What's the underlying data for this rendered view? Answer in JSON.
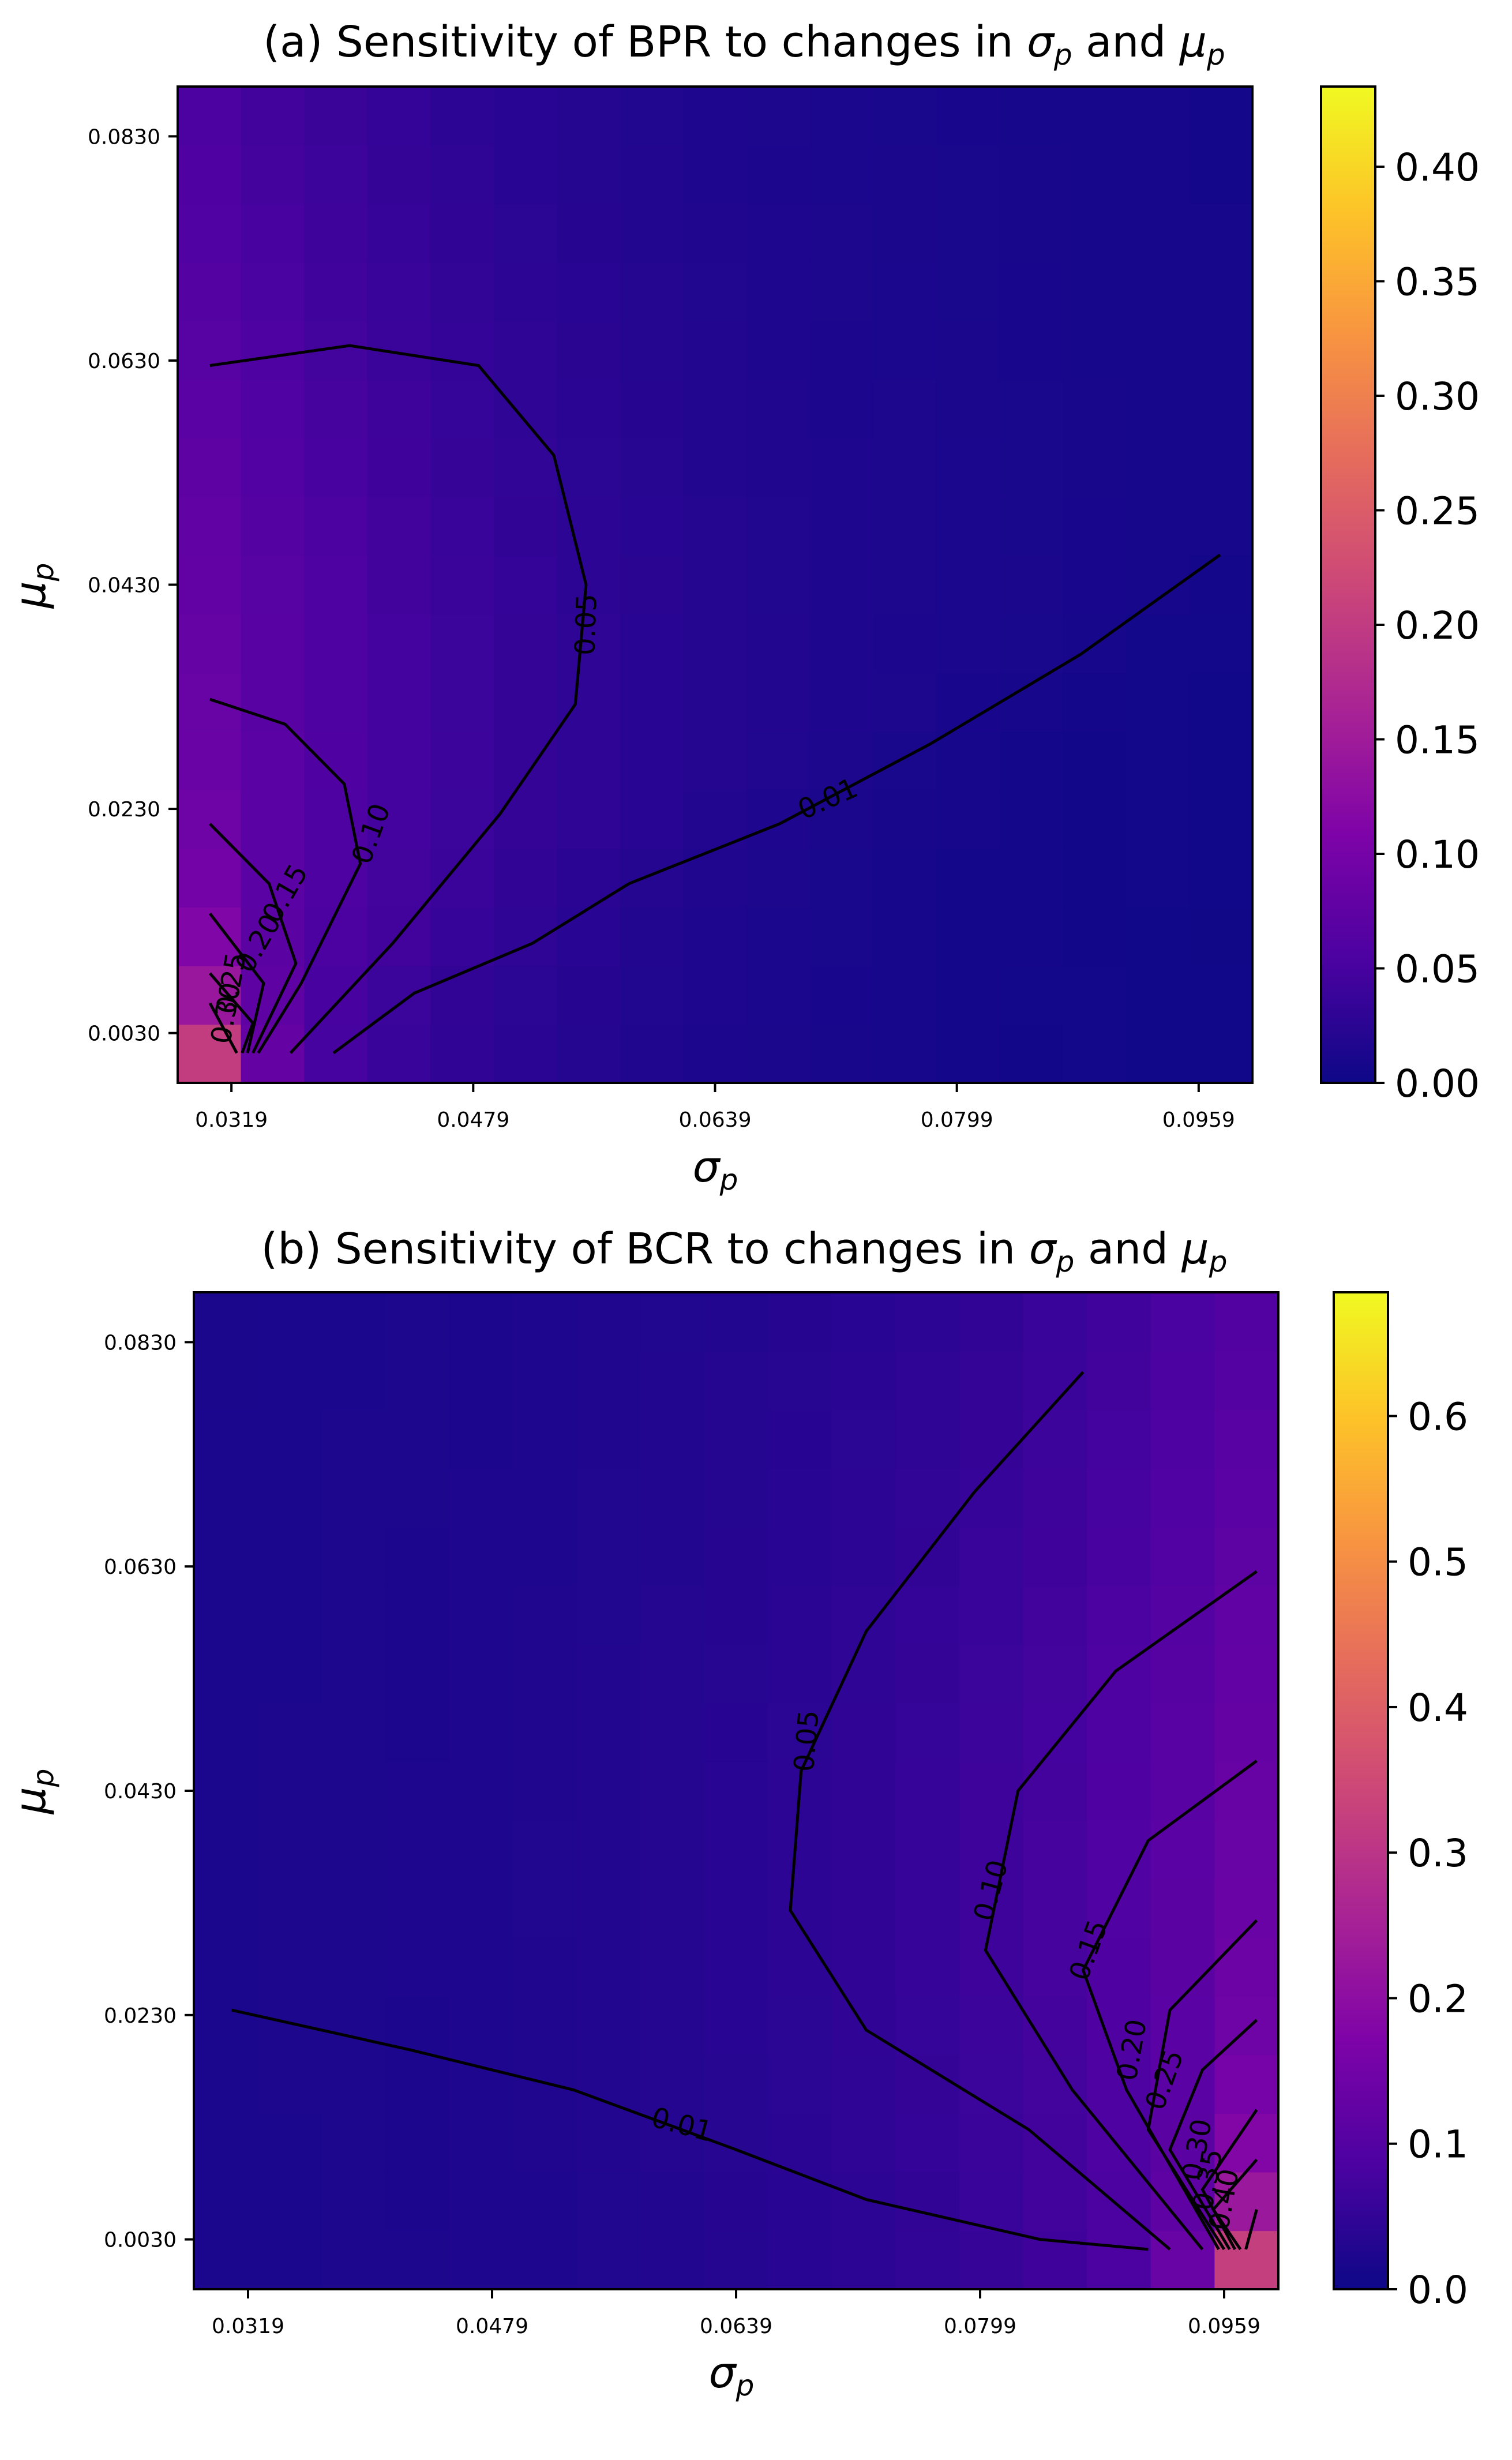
{
  "chart_data": [
    {
      "type": "heatmap",
      "title_prefix": "(a) Sensitivity of BPR to changes in ",
      "title_mid": " and ",
      "sigma_symbol": "σ",
      "mu_symbol": "μ",
      "subscript": "p",
      "xlabel": "σp",
      "ylabel": "μp",
      "x_ticks": [
        "0.0319",
        "0.0479",
        "0.0639",
        "0.0799",
        "0.0959"
      ],
      "y_ticks": [
        "0.0030",
        "0.0230",
        "0.0430",
        "0.0630",
        "0.0830"
      ],
      "x_range": [
        0.0319,
        0.0959
      ],
      "y_range": [
        0.003,
        0.083
      ],
      "grid": {
        "nx": 17,
        "ny": 17
      },
      "colormap": "plasma",
      "vmin": 0.0,
      "vmax": 0.435,
      "colorbar_ticks": [
        "0.00",
        "0.05",
        "0.10",
        "0.15",
        "0.20",
        "0.25",
        "0.30",
        "0.35",
        "0.40"
      ],
      "colorbar_values": [
        0.0,
        0.05,
        0.1,
        0.15,
        0.2,
        0.25,
        0.3,
        0.35,
        0.4
      ],
      "peak_corner": "bottom-left",
      "contour_levels": [
        "0.01",
        "0.05",
        "0.10",
        "0.15",
        "0.20",
        "0.25",
        "0.30"
      ]
    },
    {
      "type": "heatmap",
      "title_prefix": "(b) Sensitivity of BCR to changes in ",
      "title_mid": " and ",
      "sigma_symbol": "σ",
      "mu_symbol": "μ",
      "subscript": "p",
      "xlabel": "σp",
      "ylabel": "μp",
      "x_ticks": [
        "0.0319",
        "0.0479",
        "0.0639",
        "0.0799",
        "0.0959"
      ],
      "y_ticks": [
        "0.0030",
        "0.0230",
        "0.0430",
        "0.0630",
        "0.0830"
      ],
      "x_range": [
        0.0319,
        0.0959
      ],
      "y_range": [
        0.003,
        0.083
      ],
      "grid": {
        "nx": 17,
        "ny": 17
      },
      "colormap": "plasma",
      "vmin": 0.0,
      "vmax": 0.685,
      "colorbar_ticks": [
        "0.0",
        "0.1",
        "0.2",
        "0.3",
        "0.4",
        "0.5",
        "0.6"
      ],
      "colorbar_values": [
        0.0,
        0.1,
        0.2,
        0.3,
        0.4,
        0.5,
        0.6
      ],
      "peak_corner": "bottom-right",
      "contour_levels": [
        "0.01",
        "0.05",
        "0.10",
        "0.15",
        "0.20",
        "0.25",
        "0.30",
        "0.35",
        "0.40"
      ]
    }
  ]
}
